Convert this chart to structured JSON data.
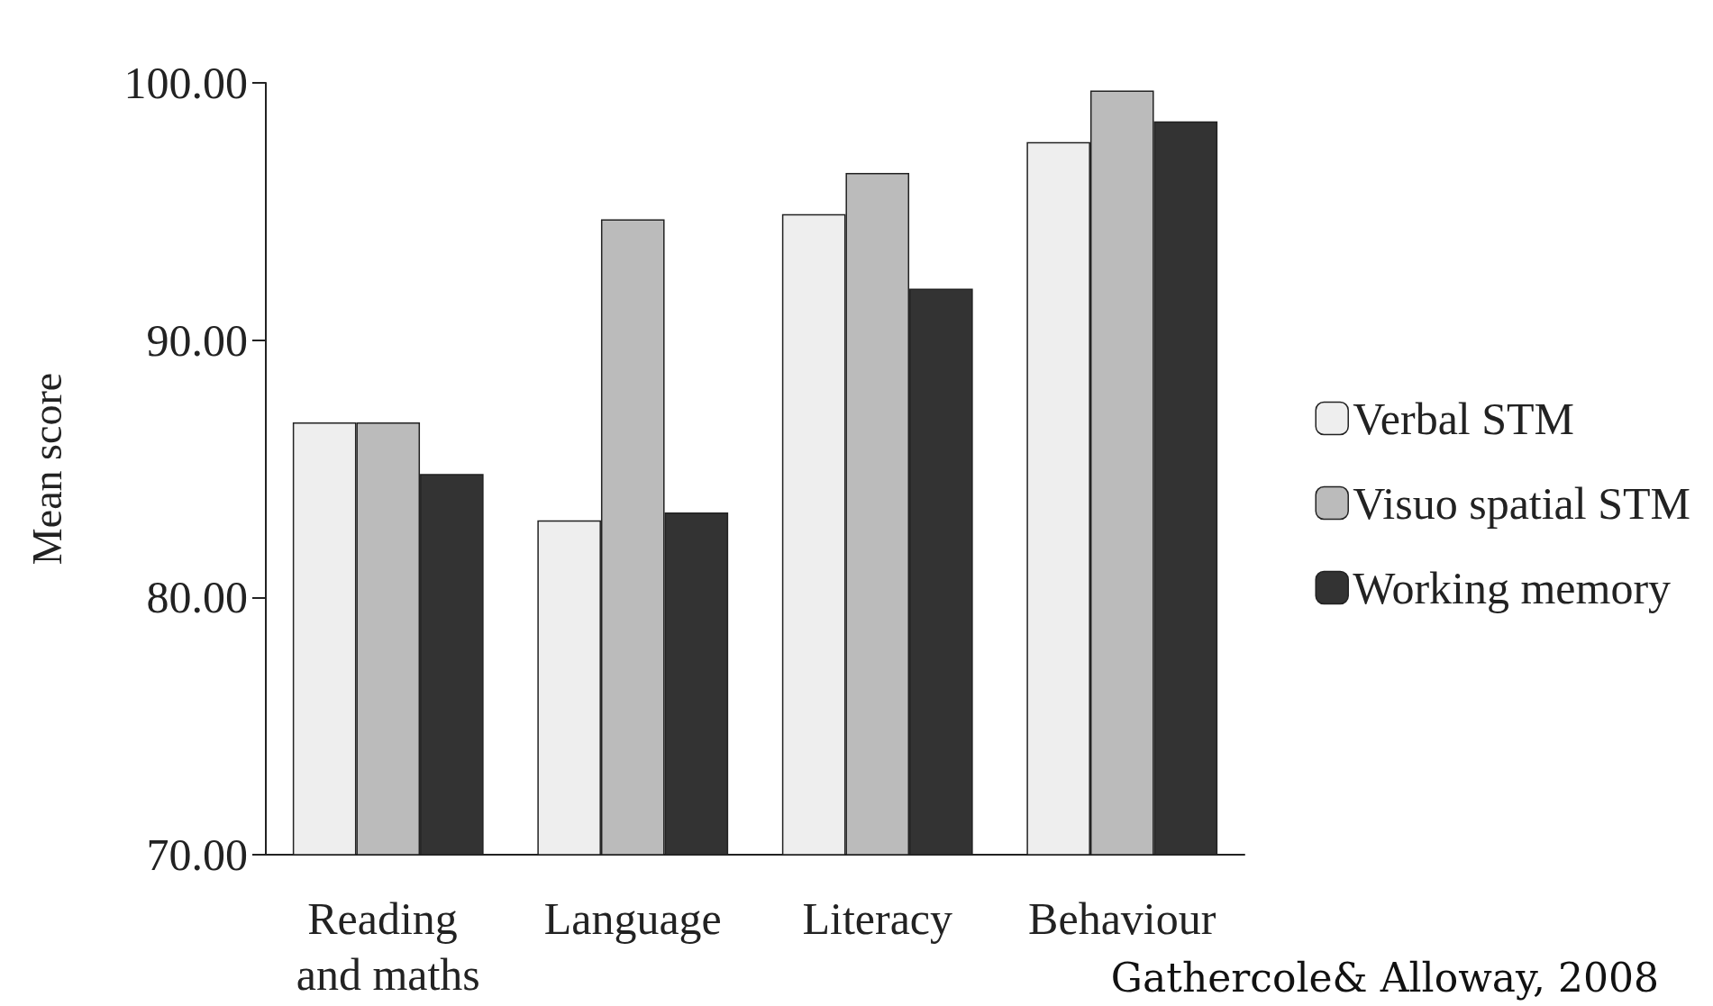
{
  "chart_data": {
    "type": "bar",
    "ylabel": "Mean score",
    "categories": [
      "Reading and maths",
      "Language",
      "Literacy",
      "Behaviour"
    ],
    "series": [
      {
        "name": "Verbal STM",
        "color": "#eeeeee",
        "values": [
          86.8,
          83.0,
          94.9,
          97.7
        ]
      },
      {
        "name": "Visuo spatial STM",
        "color": "#bbbbbb",
        "values": [
          86.8,
          94.7,
          96.5,
          99.7
        ]
      },
      {
        "name": "Working memory",
        "color": "#333333",
        "values": [
          84.8,
          83.3,
          92.0,
          98.5
        ]
      }
    ],
    "ylim": [
      70,
      100
    ],
    "yticks": [
      {
        "value": 70,
        "label": "70.00"
      },
      {
        "value": 80,
        "label": "80.00"
      },
      {
        "value": 90,
        "label": "90.00"
      },
      {
        "value": 100,
        "label": "100.00"
      }
    ],
    "grid": false,
    "legend": "right",
    "annotations": [
      "Gathercole& Alloway, 2008"
    ]
  }
}
